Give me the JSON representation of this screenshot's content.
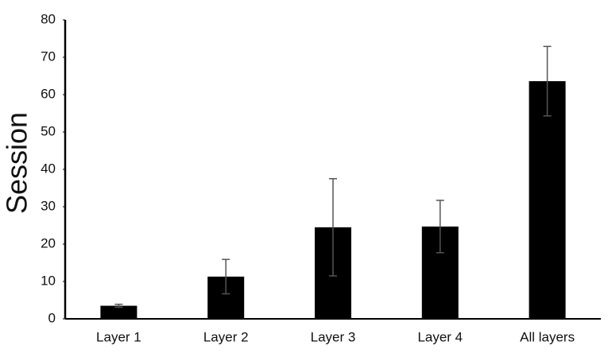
{
  "chart_data": {
    "type": "bar",
    "y_label": "Session",
    "categories": [
      "Layer 1",
      "Layer 2",
      "Layer 3",
      "Layer 4",
      "All layers"
    ],
    "values": [
      3.5,
      11.3,
      24.5,
      24.7,
      63.6
    ],
    "errors": [
      0.4,
      4.6,
      13,
      7,
      9.3
    ],
    "color": "#000000",
    "error_color": "#555555",
    "ylim": [
      0,
      80
    ],
    "yticks": [
      0,
      10,
      20,
      30,
      40,
      50,
      60,
      70,
      80
    ]
  }
}
